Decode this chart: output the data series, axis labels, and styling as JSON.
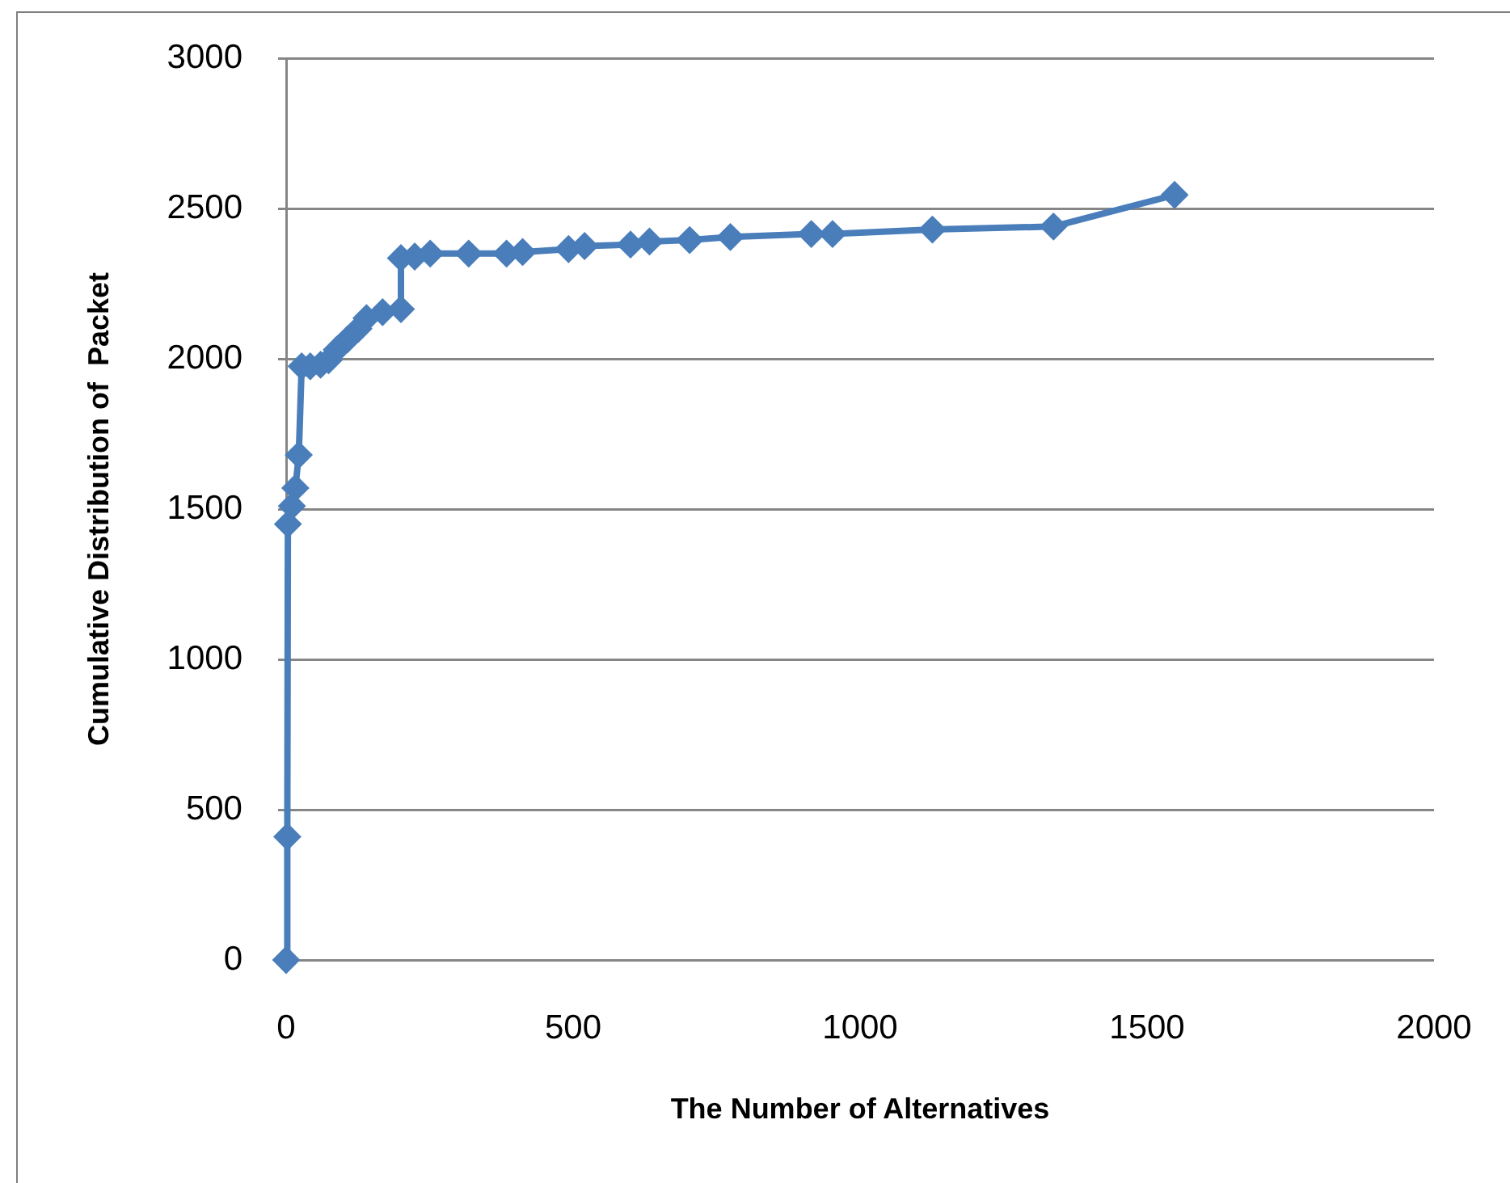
{
  "chart_data": {
    "type": "line",
    "xlabel": "The Number of Alternatives",
    "ylabel": "Cumulative Distribution of  Packet",
    "x": [
      0,
      2,
      3,
      10,
      16,
      22,
      27,
      42,
      60,
      74,
      88,
      107,
      126,
      140,
      168,
      200,
      200,
      224,
      251,
      318,
      384,
      412,
      492,
      520,
      600,
      633,
      703,
      774,
      915,
      952,
      1126,
      1337,
      1548
    ],
    "series": [
      {
        "color": "#4a7ebb",
        "values": [
          0,
          410,
          1450,
          1510,
          1570,
          1680,
          1975,
          1975,
          1980,
          1995,
          2030,
          2065,
          2100,
          2135,
          2155,
          2165,
          2335,
          2340,
          2350,
          2350,
          2350,
          2355,
          2365,
          2375,
          2380,
          2390,
          2395,
          2405,
          2415,
          2415,
          2430,
          2440,
          2545
        ]
      }
    ],
    "xlim": [
      0,
      2000
    ],
    "xticks": [
      0,
      500,
      1000,
      1500,
      2000
    ],
    "ylim": [
      0,
      3000
    ],
    "yticks": [
      0,
      500,
      1000,
      1500,
      2000,
      2500,
      3000
    ],
    "grid": "y",
    "legend": false,
    "marker": "diamond",
    "line_style": "solid"
  }
}
